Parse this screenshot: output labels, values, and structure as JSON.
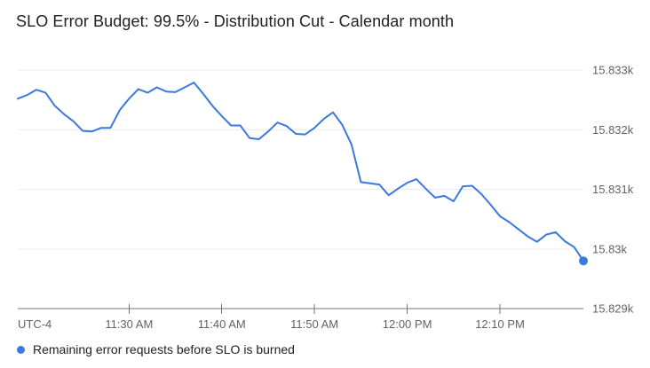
{
  "header": {
    "title": "SLO Error Budget: 99.5% - Distribution Cut - Calendar month"
  },
  "legend": {
    "items": [
      {
        "label": "Remaining error requests before SLO is burned",
        "color": "#3b78e0"
      }
    ]
  },
  "colors": {
    "series_blue": "#3b78e0",
    "grid": "#ededed",
    "axis": "#757575",
    "tick_label": "#5f6368",
    "title_text": "#202124",
    "background": "#ffffff"
  },
  "chart_data": {
    "type": "line",
    "title": "SLO Error Budget: 99.5% - Distribution Cut - Calendar month",
    "grid": "horizontal",
    "legend_position": "bottom",
    "x_axis_prefix_label": "UTC-4",
    "ylim": [
      15829,
      15833
    ],
    "y_ticks": [
      {
        "value": 15833,
        "label": "15.833k"
      },
      {
        "value": 15832,
        "label": "15.832k"
      },
      {
        "value": 15831,
        "label": "15.831k"
      },
      {
        "value": 15830,
        "label": "15.83k"
      },
      {
        "value": 15829,
        "label": "15.829k"
      }
    ],
    "x_ticks": [
      {
        "index": 12,
        "label": "11:30 AM"
      },
      {
        "index": 22,
        "label": "11:40 AM"
      },
      {
        "index": 32,
        "label": "11:50 AM"
      },
      {
        "index": 42,
        "label": "12:00 PM"
      },
      {
        "index": 52,
        "label": "12:10 PM"
      }
    ],
    "x": [
      "11:18 AM",
      "11:19 AM",
      "11:20 AM",
      "11:21 AM",
      "11:22 AM",
      "11:23 AM",
      "11:24 AM",
      "11:25 AM",
      "11:26 AM",
      "11:27 AM",
      "11:28 AM",
      "11:29 AM",
      "11:30 AM",
      "11:31 AM",
      "11:32 AM",
      "11:33 AM",
      "11:34 AM",
      "11:35 AM",
      "11:36 AM",
      "11:37 AM",
      "11:38 AM",
      "11:39 AM",
      "11:40 AM",
      "11:41 AM",
      "11:42 AM",
      "11:43 AM",
      "11:44 AM",
      "11:45 AM",
      "11:46 AM",
      "11:47 AM",
      "11:48 AM",
      "11:49 AM",
      "11:50 AM",
      "11:51 AM",
      "11:52 AM",
      "11:53 AM",
      "11:54 AM",
      "11:55 AM",
      "11:56 AM",
      "11:57 AM",
      "11:58 AM",
      "11:59 AM",
      "12:00 PM",
      "12:01 PM",
      "12:02 PM",
      "12:03 PM",
      "12:04 PM",
      "12:05 PM",
      "12:06 PM",
      "12:07 PM",
      "12:08 PM",
      "12:09 PM",
      "12:10 PM",
      "12:11 PM",
      "12:12 PM",
      "12:13 PM",
      "12:14 PM",
      "12:15 PM",
      "12:16 PM",
      "12:17 PM",
      "12:18 PM",
      "12:19 PM"
    ],
    "series": [
      {
        "name": "Remaining error requests before SLO is burned",
        "color": "#3b78e0",
        "end_marker": "dot",
        "values": [
          15832.52,
          15832.58,
          15832.67,
          15832.62,
          15832.4,
          15832.26,
          15832.14,
          15831.98,
          15831.97,
          15832.03,
          15832.03,
          15832.33,
          15832.52,
          15832.68,
          15832.62,
          15832.71,
          15832.64,
          15832.63,
          15832.71,
          15832.79,
          15832.6,
          15832.4,
          15832.23,
          15832.07,
          15832.07,
          15831.86,
          15831.84,
          15831.97,
          15832.12,
          15832.06,
          15831.93,
          15831.92,
          15832.03,
          15832.18,
          15832.29,
          15832.08,
          15831.75,
          15831.12,
          15831.1,
          15831.08,
          15830.9,
          15831.01,
          15831.11,
          15831.17,
          15831.01,
          15830.86,
          15830.89,
          15830.8,
          15831.05,
          15831.06,
          15830.92,
          15830.74,
          15830.55,
          15830.45,
          15830.33,
          15830.21,
          15830.12,
          15830.24,
          15830.28,
          15830.13,
          15830.03,
          15829.8
        ]
      }
    ]
  }
}
